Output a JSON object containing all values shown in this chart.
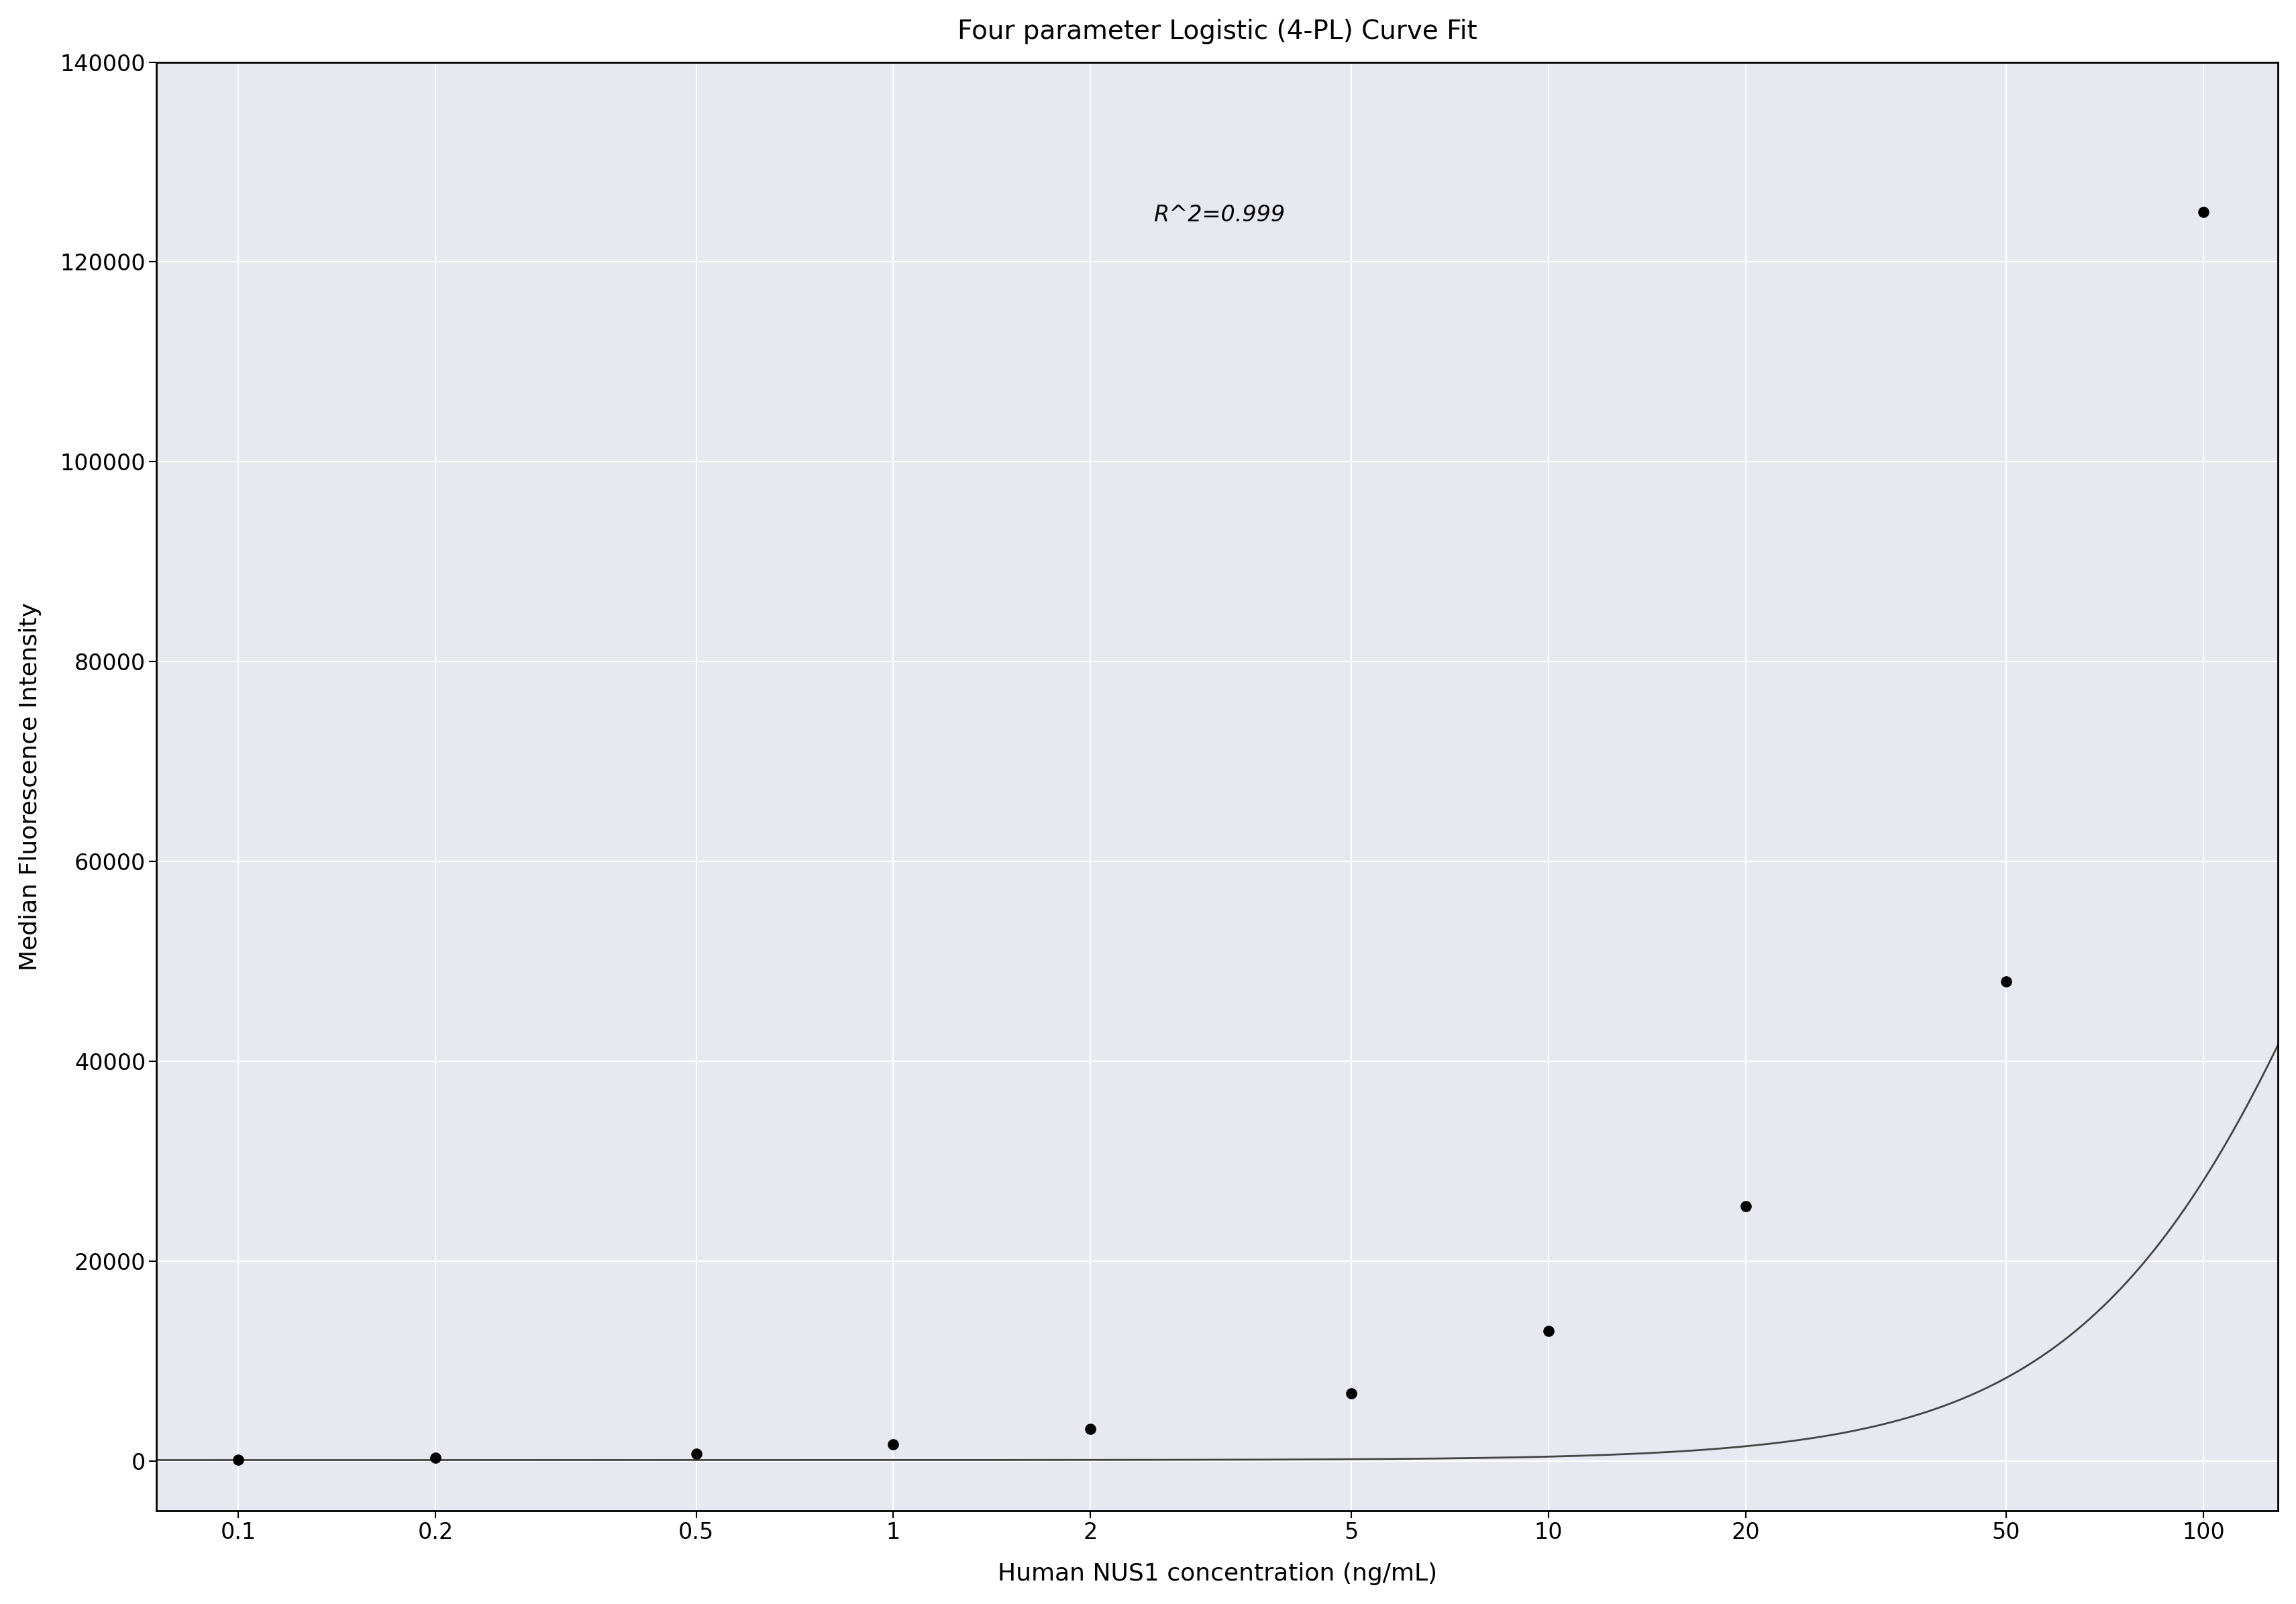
{
  "title": "Four parameter Logistic (4-PL) Curve Fit",
  "xlabel": "Human NUS1 concentration (ng/mL)",
  "ylabel": "Median Fluorescence Intensity",
  "annotation": "R^2=0.999",
  "background_color": "#ffffff",
  "plot_bg_color": "#e8e8f0",
  "grid_color": "#ffffff",
  "data_x_points": [
    0.1,
    0.2,
    0.5,
    1.0,
    2.0,
    5.0,
    10.0,
    20.0,
    50.0,
    100.0
  ],
  "data_y_points": [
    150,
    350,
    750,
    1700,
    3200,
    6800,
    13000,
    25500,
    48000,
    125000
  ],
  "xticks": [
    0.1,
    0.2,
    0.5,
    1,
    2,
    5,
    10,
    20,
    50,
    100
  ],
  "xtick_labels": [
    "0.1",
    "0.2",
    "0.5",
    "1",
    "2",
    "5",
    "10",
    "20",
    "50",
    "100"
  ],
  "ylim": [
    -5000,
    140000
  ],
  "yticks": [
    0,
    20000,
    40000,
    60000,
    80000,
    100000,
    120000,
    140000
  ],
  "line_color": "#444444",
  "marker_color": "#000000",
  "marker_size": 120,
  "title_fontsize": 28,
  "label_fontsize": 26,
  "tick_fontsize": 24,
  "annotation_fontsize": 24,
  "xlim_left": 0.075,
  "xlim_right": 130
}
